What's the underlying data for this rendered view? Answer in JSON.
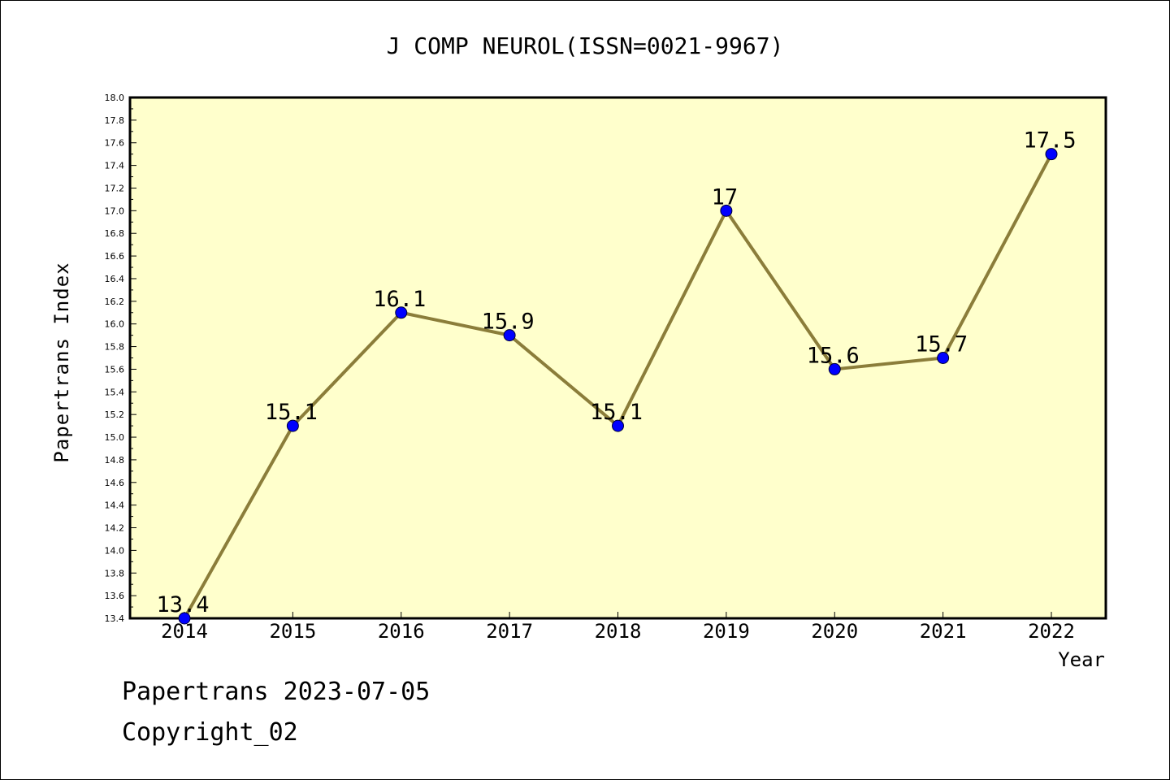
{
  "chart_data": {
    "type": "line",
    "title": "J COMP NEUROL(ISSN=0021-9967)",
    "xlabel": "Year",
    "ylabel": "Papertrans Index",
    "categories": [
      "2014",
      "2015",
      "2016",
      "2017",
      "2018",
      "2019",
      "2020",
      "2021",
      "2022"
    ],
    "series": [
      {
        "values": [
          13.4,
          15.1,
          16.1,
          15.9,
          15.1,
          17.0,
          15.6,
          15.7,
          17.5
        ]
      }
    ],
    "data_labels": [
      "13.4",
      "15.1",
      "16.1",
      "15.9",
      "15.1",
      "17",
      "15.6",
      "15.7",
      "17.5"
    ],
    "ylim": [
      13.4,
      18.0
    ],
    "ytick_step": 0.2,
    "grid": false,
    "colors": {
      "plot_bg": "#ffffcc",
      "line": "#8b7d3a",
      "marker": "#0000ff"
    }
  },
  "footer": {
    "line1": "Papertrans 2023-07-05",
    "line2": "Copyright_02"
  }
}
